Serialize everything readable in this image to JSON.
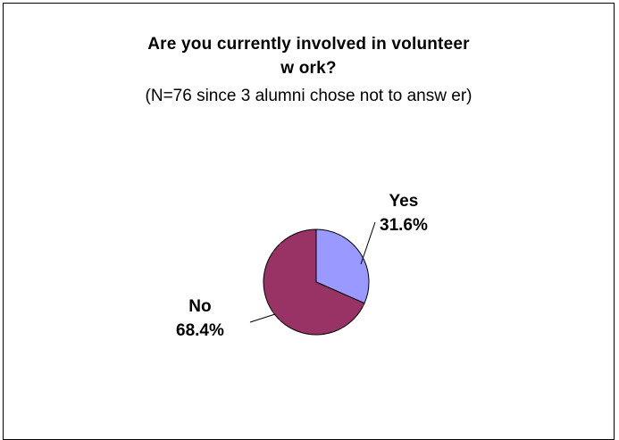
{
  "chart_data": {
    "type": "pie",
    "title_lines": [
      "Are you currently involved in volunteer",
      "w ork?"
    ],
    "subtitle": "(N=76 since 3 alumni chose not to answ er)",
    "slices": [
      {
        "name": "Yes",
        "label": "31.6%",
        "value": 31.6,
        "color": "#9999ff"
      },
      {
        "name": "No",
        "label": "68.4%",
        "value": 68.4,
        "color": "#993366"
      }
    ]
  }
}
